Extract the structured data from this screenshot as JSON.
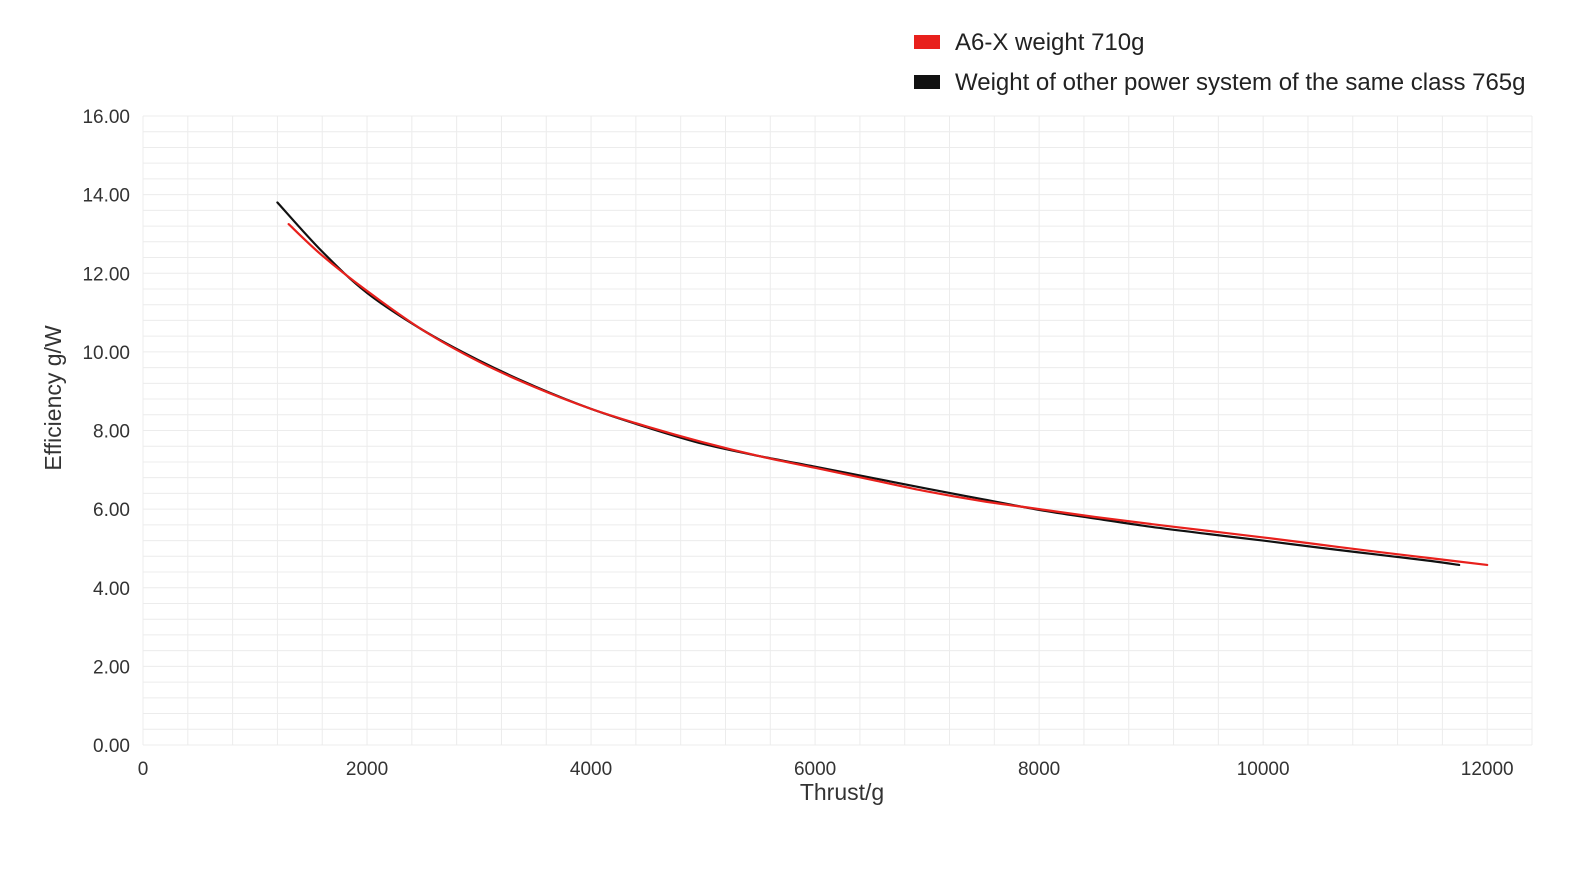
{
  "chart_data": {
    "type": "line",
    "xlabel": "Thrust/g",
    "ylabel": "Efficiency g/W",
    "xlim": [
      0,
      12400
    ],
    "ylim": [
      0,
      16
    ],
    "x_ticks": [
      "0",
      "2000",
      "4000",
      "6000",
      "8000",
      "10000",
      "12000"
    ],
    "y_ticks": [
      "0.00",
      "2.00",
      "4.00",
      "6.00",
      "8.00",
      "10.00",
      "12.00",
      "14.00",
      "16.00"
    ],
    "grid": true,
    "legend_position": "top-right",
    "series": [
      {
        "name": "A6-X weight 710g",
        "color": "#e8201c",
        "x": [
          1300,
          1600,
          2000,
          2500,
          3000,
          3500,
          4000,
          4500,
          5000,
          5500,
          6000,
          6500,
          7000,
          7500,
          8000,
          8500,
          9000,
          9500,
          10000,
          10500,
          11000,
          11500,
          12000
        ],
        "y": [
          13.25,
          12.45,
          11.55,
          10.55,
          9.75,
          9.1,
          8.55,
          8.1,
          7.7,
          7.35,
          7.05,
          6.75,
          6.45,
          6.2,
          6.0,
          5.8,
          5.62,
          5.45,
          5.28,
          5.1,
          4.92,
          4.75,
          4.58
        ]
      },
      {
        "name": "Weight of other power system of the same class 765g",
        "color": "#111111",
        "x": [
          1200,
          1600,
          2000,
          2500,
          3000,
          3500,
          4000,
          4500,
          5000,
          5500,
          6000,
          6500,
          7000,
          7500,
          8000,
          8500,
          9000,
          9500,
          10000,
          10500,
          11000,
          11500,
          11750
        ],
        "y": [
          13.8,
          12.55,
          11.5,
          10.55,
          9.78,
          9.12,
          8.55,
          8.08,
          7.66,
          7.35,
          7.08,
          6.8,
          6.52,
          6.25,
          5.98,
          5.76,
          5.55,
          5.37,
          5.2,
          5.02,
          4.85,
          4.68,
          4.58
        ]
      }
    ]
  }
}
